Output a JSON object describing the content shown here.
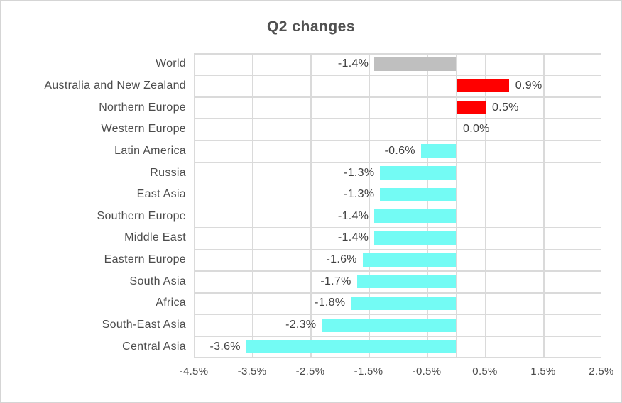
{
  "figure": {
    "title": "Q2 changes"
  },
  "chart_data": {
    "type": "bar",
    "orientation": "horizontal",
    "title": "Q2 changes",
    "xlabel": "",
    "ylabel": "",
    "xlim": [
      -4.5,
      2.5
    ],
    "grid": true,
    "legend": false,
    "categories": [
      "World",
      "Australia and New Zealand",
      "Northern Europe",
      "Western Europe",
      "Latin America",
      "Russia",
      "East Asia",
      "Southern Europe",
      "Middle East",
      "Eastern Europe",
      "South Asia",
      "Africa",
      "South-East Asia",
      "Central Asia"
    ],
    "values": [
      -1.4,
      0.9,
      0.5,
      0.0,
      -0.6,
      -1.3,
      -1.3,
      -1.4,
      -1.4,
      -1.6,
      -1.7,
      -1.8,
      -2.3,
      -3.6
    ],
    "value_labels": [
      "-1.4%",
      "0.9%",
      "0.5%",
      "0.0%",
      "-0.6%",
      "-1.3%",
      "-1.3%",
      "-1.4%",
      "-1.4%",
      "-1.6%",
      "-1.7%",
      "-1.8%",
      "-2.3%",
      "-3.6%"
    ],
    "bar_colors": [
      "#BFBFBF",
      "#FF0000",
      "#FF0000",
      "#73FBF4",
      "#73FBF4",
      "#73FBF4",
      "#73FBF4",
      "#73FBF4",
      "#73FBF4",
      "#73FBF4",
      "#73FBF4",
      "#73FBF4",
      "#73FBF4",
      "#73FBF4"
    ],
    "x_ticks": [
      {
        "value": -4.5,
        "label": "-4.5%"
      },
      {
        "value": -3.5,
        "label": "-3.5%"
      },
      {
        "value": -2.5,
        "label": "-2.5%"
      },
      {
        "value": -1.5,
        "label": "-1.5%"
      },
      {
        "value": -0.5,
        "label": "-0.5%"
      },
      {
        "value": 0.5,
        "label": "0.5%"
      },
      {
        "value": 1.5,
        "label": "1.5%"
      },
      {
        "value": 2.5,
        "label": "2.5%"
      }
    ],
    "colors": {
      "negative_bar": "#73FBF4",
      "positive_bar": "#FF0000",
      "world_bar": "#BFBFBF",
      "gridline": "#dadada",
      "text": "#4c4c4c",
      "title_text": "#515151",
      "background": "#ffffff"
    }
  }
}
